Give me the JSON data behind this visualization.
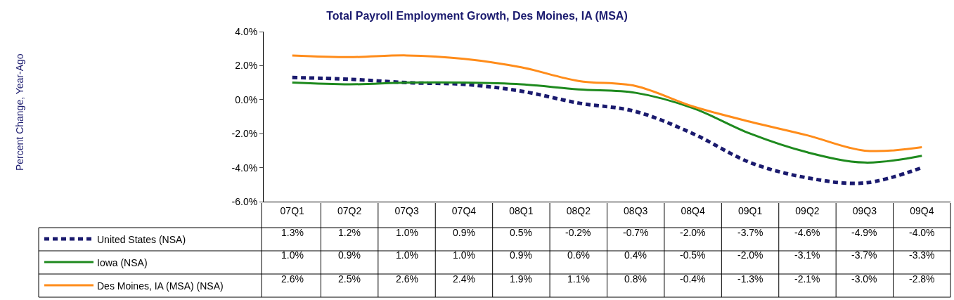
{
  "chart_data": {
    "type": "line",
    "title": "Total Payroll Employment Growth, Des Moines, IA (MSA)",
    "annotations": [
      "Percent Change, Year-Ago"
    ],
    "categories": [
      "07Q1",
      "07Q2",
      "07Q3",
      "07Q4",
      "08Q1",
      "08Q2",
      "08Q3",
      "08Q4",
      "09Q1",
      "09Q2",
      "09Q3",
      "09Q4"
    ],
    "series": [
      {
        "name": "United States (NSA)",
        "color": "#1a1a6e",
        "line_style": "dashed",
        "values": [
          1.3,
          1.2,
          1.0,
          0.9,
          0.5,
          -0.2,
          -0.7,
          -2.0,
          -3.7,
          -4.6,
          -4.9,
          -4.0
        ],
        "value_labels": [
          "1.3%",
          "1.2%",
          "1.0%",
          "0.9%",
          "0.5%",
          "-0.2%",
          "-0.7%",
          "-2.0%",
          "-3.7%",
          "-4.6%",
          "-4.9%",
          "-4.0%"
        ]
      },
      {
        "name": "Iowa (NSA)",
        "color": "#1e8a1e",
        "line_style": "solid",
        "values": [
          1.0,
          0.9,
          1.0,
          1.0,
          0.9,
          0.6,
          0.4,
          -0.5,
          -2.0,
          -3.1,
          -3.7,
          -3.3
        ],
        "value_labels": [
          "1.0%",
          "0.9%",
          "1.0%",
          "1.0%",
          "0.9%",
          "0.6%",
          "0.4%",
          "-0.5%",
          "-2.0%",
          "-3.1%",
          "-3.7%",
          "-3.3%"
        ]
      },
      {
        "name": "Des Moines, IA (MSA) (NSA)",
        "color": "#ff8c1a",
        "line_style": "solid",
        "values": [
          2.6,
          2.5,
          2.6,
          2.4,
          1.9,
          1.1,
          0.8,
          -0.4,
          -1.3,
          -2.1,
          -3.0,
          -2.8
        ],
        "value_labels": [
          "2.6%",
          "2.5%",
          "2.6%",
          "2.4%",
          "1.9%",
          "1.1%",
          "0.8%",
          "-0.4%",
          "-1.3%",
          "-2.1%",
          "-3.0%",
          "-2.8%"
        ]
      }
    ],
    "ylim": [
      -6,
      4
    ],
    "yticks": [
      {
        "value": -6,
        "label": "-6.0%"
      },
      {
        "value": -4,
        "label": "-4.0%"
      },
      {
        "value": -2,
        "label": "-2.0%"
      },
      {
        "value": 0,
        "label": "0.0%"
      },
      {
        "value": 2,
        "label": "2.0%"
      },
      {
        "value": 4,
        "label": "4.0%"
      }
    ],
    "marker": "none",
    "legend": "bottom left"
  }
}
